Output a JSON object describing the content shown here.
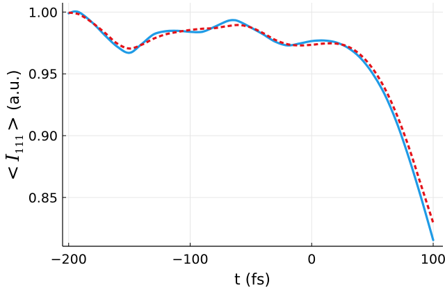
{
  "chart_data": {
    "type": "line",
    "xlabel": "t (fs)",
    "ylabel": {
      "open": "<",
      "symbol": "I",
      "subscript": "111",
      "close": ">",
      "unit": "(a.u.)"
    },
    "xlim": [
      -205,
      108
    ],
    "ylim": [
      0.8105,
      1.0075
    ],
    "xticks": [
      -200,
      -100,
      0,
      100
    ],
    "xtick_labels": [
      "−200",
      "−100",
      "0",
      "100"
    ],
    "yticks": [
      0.85,
      0.9,
      0.95,
      1.0
    ],
    "ytick_labels": [
      "0.85",
      "0.90",
      "0.95",
      "1.00"
    ],
    "grid": true,
    "series": [
      {
        "color": "#1f9be6",
        "style": "solid",
        "x": [
          -200,
          -195,
          -190,
          -180,
          -170,
          -160,
          -150,
          -140,
          -130,
          -120,
          -110,
          -100,
          -90,
          -80,
          -70,
          -65,
          -60,
          -50,
          -40,
          -30,
          -20,
          -10,
          0,
          10,
          20,
          30,
          40,
          50,
          60,
          70,
          80,
          90,
          100
        ],
        "y": [
          0.999,
          1.0005,
          0.999,
          0.991,
          0.981,
          0.972,
          0.967,
          0.974,
          0.982,
          0.9845,
          0.9848,
          0.984,
          0.984,
          0.988,
          0.9925,
          0.9935,
          0.9925,
          0.9875,
          0.982,
          0.976,
          0.973,
          0.9745,
          0.9765,
          0.977,
          0.9755,
          0.971,
          0.963,
          0.9505,
          0.9335,
          0.9105,
          0.882,
          0.85,
          0.8155
        ]
      },
      {
        "color": "#e3131a",
        "style": "dashed",
        "x": [
          -200,
          -195,
          -190,
          -180,
          -170,
          -160,
          -150,
          -140,
          -130,
          -120,
          -110,
          -100,
          -90,
          -80,
          -70,
          -60,
          -50,
          -40,
          -30,
          -20,
          -10,
          0,
          10,
          20,
          30,
          40,
          50,
          60,
          70,
          80,
          90,
          100
        ],
        "y": [
          0.9995,
          0.999,
          0.9975,
          0.991,
          0.983,
          0.9745,
          0.9705,
          0.9735,
          0.9785,
          0.982,
          0.984,
          0.9855,
          0.9865,
          0.987,
          0.9885,
          0.9895,
          0.9875,
          0.983,
          0.9775,
          0.974,
          0.973,
          0.9735,
          0.9745,
          0.9745,
          0.972,
          0.9655,
          0.9545,
          0.9385,
          0.917,
          0.8905,
          0.86,
          0.8295
        ]
      }
    ]
  }
}
